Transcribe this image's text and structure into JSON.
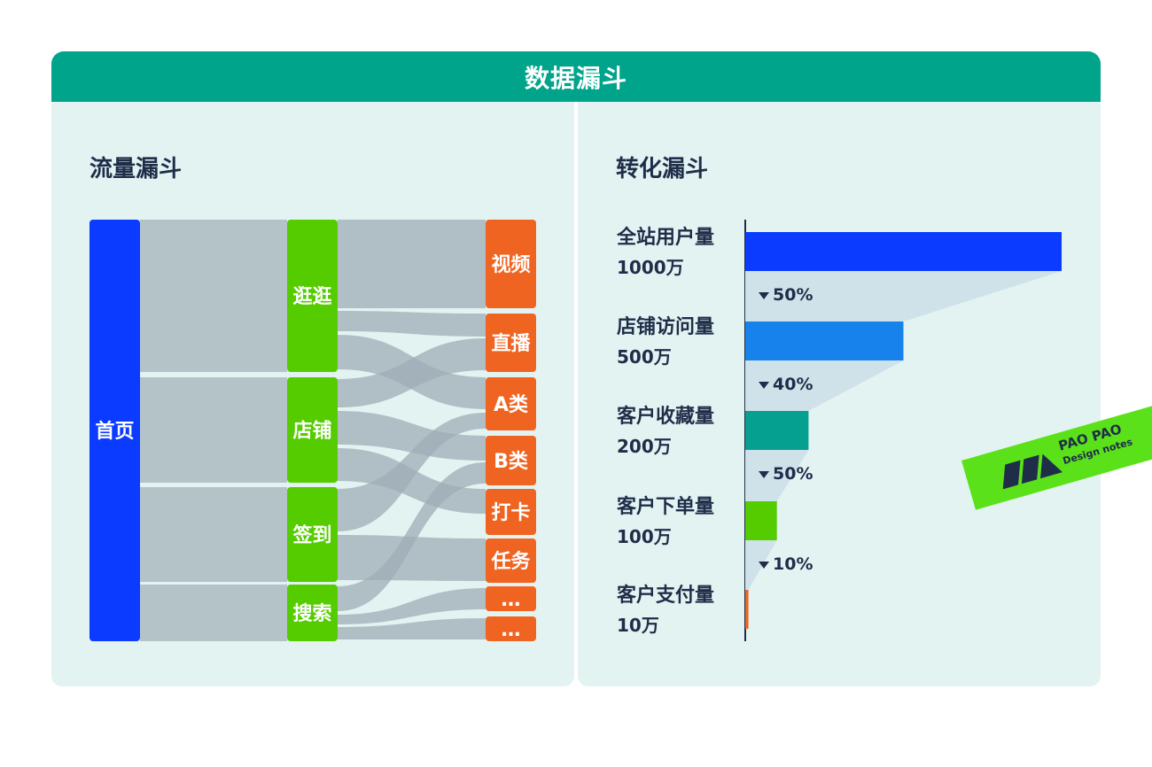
{
  "header": {
    "title": "数据漏斗"
  },
  "left_panel": {
    "title": "流量漏斗"
  },
  "right_panel": {
    "title": "转化漏斗"
  },
  "chart_data": [
    {
      "type": "sankey",
      "title": "流量漏斗",
      "levels": [
        [
          {
            "label": "首页",
            "color": "#0A3BFF"
          }
        ],
        [
          {
            "label": "逛逛",
            "color": "#55CC00"
          },
          {
            "label": "店铺",
            "color": "#55CC00"
          },
          {
            "label": "签到",
            "color": "#55CC00"
          },
          {
            "label": "搜索",
            "color": "#55CC00"
          }
        ],
        [
          {
            "label": "视频",
            "color": "#F06421"
          },
          {
            "label": "直播",
            "color": "#F06421"
          },
          {
            "label": "A类",
            "color": "#F06421"
          },
          {
            "label": "B类",
            "color": "#F06421"
          },
          {
            "label": "打卡",
            "color": "#F06421"
          },
          {
            "label": "任务",
            "color": "#F06421"
          },
          {
            "label": "…",
            "color": "#F06421"
          },
          {
            "label": "…",
            "color": "#F06421"
          }
        ]
      ],
      "node_values": {
        "逛逛": 172,
        "店铺": 117,
        "签到": 107,
        "搜索": 64,
        "视频": 100,
        "直播": 66,
        "A类": 60,
        "B类": 56,
        "打卡": 52,
        "任务": 50,
        "…1": 28,
        "…2": 28
      }
    },
    {
      "type": "bar",
      "title": "转化漏斗",
      "orientation": "horizontal",
      "categories": [
        "全站用户量",
        "店铺访问量",
        "客户收藏量",
        "客户下单量",
        "客户支付量"
      ],
      "value_labels": [
        "1000万",
        "500万",
        "200万",
        "100万",
        "10万"
      ],
      "values": [
        1000,
        500,
        200,
        100,
        10
      ],
      "unit": "万",
      "colors": [
        "#0A3BFF",
        "#1882EC",
        "#06A090",
        "#55CC00",
        "#F06421"
      ],
      "conversion_rates": [
        "50%",
        "40%",
        "50%",
        "10%"
      ],
      "xlim": [
        0,
        1000
      ]
    }
  ],
  "badge": {
    "line1": "PAO PAO",
    "line2": "Design notes"
  }
}
